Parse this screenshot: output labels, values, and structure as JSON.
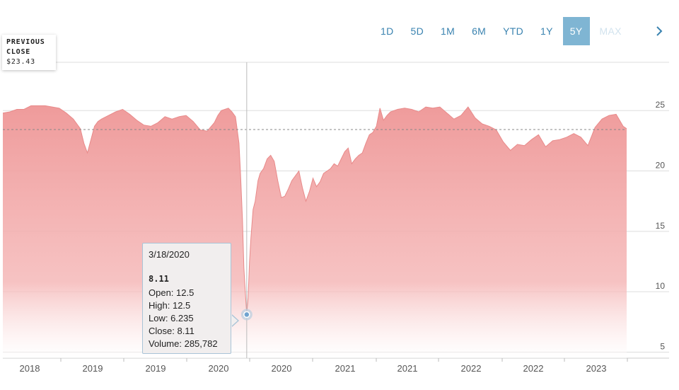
{
  "range_buttons": [
    {
      "label": "1D"
    },
    {
      "label": "5D"
    },
    {
      "label": "1M"
    },
    {
      "label": "6M"
    },
    {
      "label": "YTD"
    },
    {
      "label": "1Y"
    },
    {
      "label": "5Y"
    },
    {
      "label": "MAX"
    }
  ],
  "active_range": "5Y",
  "previous_close": {
    "label": "PREVIOUS CLOSE",
    "value": "$23.43"
  },
  "tooltip": {
    "date": "3/18/2020",
    "value": "8.11",
    "open": "Open: 12.5",
    "high": "High: 12.5",
    "low": "Low: 6.235",
    "close": "Close: 8.11",
    "volume": "Volume: 285,782"
  },
  "colors": {
    "area_fill_top": "#ef9b9b",
    "area_fill_bottom": "#ffffff",
    "area_line": "#e88a8a",
    "button_accent": "#3a83b0",
    "active_button": "#7fb5d3",
    "grid": "#dddddd"
  },
  "chart_data": {
    "type": "area",
    "title": "",
    "xlabel": "",
    "ylabel": "",
    "ylim": [
      4.5,
      29
    ],
    "y_ticks": [
      5,
      10,
      15,
      20,
      25
    ],
    "x_tick_labels": [
      "2018",
      "2019",
      "2019",
      "2020",
      "2020",
      "2021",
      "2021",
      "2022",
      "2022",
      "2023"
    ],
    "reference_line": {
      "label": "Previous close",
      "value": 23.43
    },
    "highlight": {
      "date": "3/18/2020",
      "value": 8.11
    },
    "grid": true,
    "series": [
      {
        "x": [
          0,
          10,
          20,
          30,
          40,
          50,
          60,
          70,
          80,
          90,
          100,
          110,
          115,
          120,
          125,
          130,
          135,
          140,
          150,
          160,
          170,
          180,
          190,
          200,
          210,
          220,
          230,
          240,
          250,
          260,
          270,
          280,
          290,
          300,
          305,
          310,
          315,
          320,
          325,
          330,
          335,
          337,
          340,
          342,
          344,
          346,
          348,
          350,
          352,
          355,
          358,
          362,
          365,
          370,
          375,
          380,
          385,
          390,
          395,
          400,
          405,
          410,
          415,
          420,
          425,
          430,
          435,
          440,
          445,
          450,
          455,
          460,
          465,
          470,
          475,
          480,
          485,
          490,
          495,
          500,
          505,
          510,
          515,
          520,
          525,
          530,
          535,
          540,
          545,
          550,
          560,
          570,
          580,
          590,
          600,
          610,
          620,
          630,
          640,
          650,
          660,
          670,
          680,
          690,
          700,
          710,
          720,
          730,
          740,
          750,
          760,
          770,
          780,
          790,
          800,
          810,
          820,
          830,
          840,
          850,
          860,
          870,
          880,
          885
        ],
        "y": [
          24.8,
          24.9,
          25.1,
          25.1,
          25.4,
          25.4,
          25.4,
          25.3,
          25.2,
          24.8,
          24.3,
          23.5,
          22.3,
          21.5,
          22.6,
          23.7,
          24.1,
          24.3,
          24.6,
          24.9,
          25.1,
          24.7,
          24.2,
          23.8,
          23.7,
          24.0,
          24.5,
          24.3,
          24.5,
          24.6,
          24.1,
          23.4,
          23.3,
          24.0,
          24.6,
          25.0,
          25.1,
          25.2,
          24.9,
          24.5,
          22.3,
          20.0,
          16.0,
          12.0,
          10.0,
          8.11,
          9.5,
          12.5,
          14.5,
          16.8,
          17.5,
          19.2,
          19.8,
          20.2,
          21.0,
          21.3,
          20.8,
          19.2,
          17.8,
          17.9,
          18.5,
          19.2,
          19.6,
          20.0,
          18.6,
          17.5,
          18.3,
          19.4,
          18.7,
          19.1,
          19.8,
          20.0,
          20.2,
          20.6,
          20.4,
          21.0,
          21.6,
          21.9,
          20.6,
          21.0,
          21.3,
          21.5,
          22.3,
          23.0,
          23.2,
          23.7,
          25.2,
          24.2,
          24.6,
          24.9,
          25.1,
          25.2,
          25.1,
          24.9,
          25.3,
          25.2,
          25.3,
          24.8,
          24.3,
          24.6,
          25.3,
          24.4,
          23.9,
          23.7,
          23.4,
          22.4,
          21.7,
          22.2,
          22.1,
          22.6,
          23.0,
          22.0,
          22.5,
          22.6,
          22.8,
          23.1,
          22.8,
          22.1,
          23.6,
          24.3,
          24.6,
          24.7,
          23.7,
          23.5
        ]
      }
    ]
  }
}
